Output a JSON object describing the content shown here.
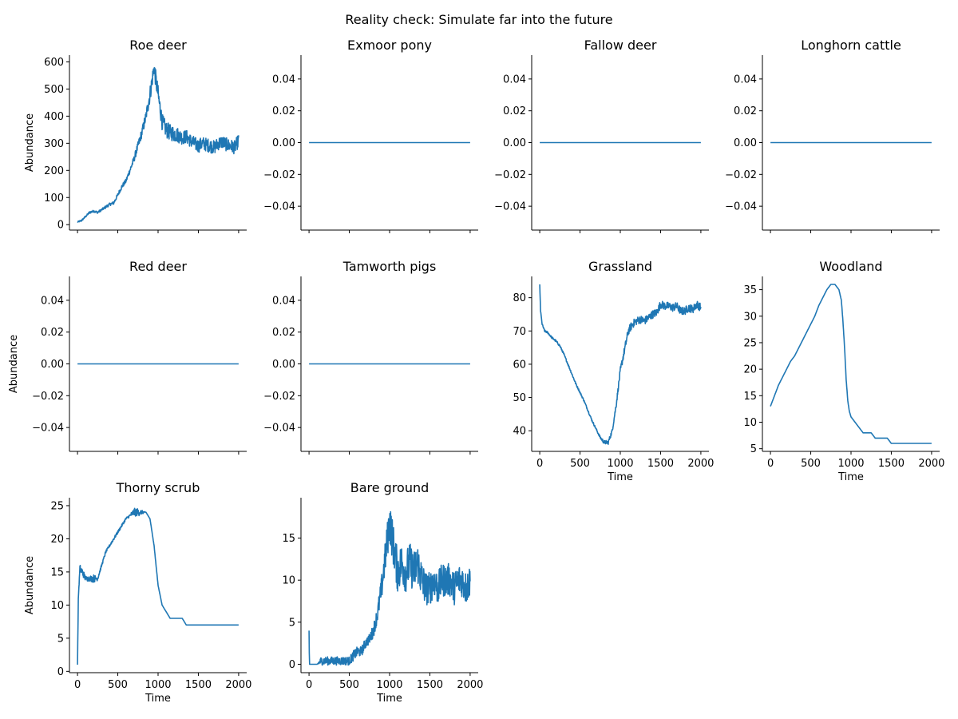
{
  "figure": {
    "suptitle": "Reality check: Simulate far into the future",
    "line_color": "#1f77b4"
  },
  "chart_data": [
    {
      "type": "line",
      "title": "Roe deer",
      "xlabel": "",
      "ylabel": "Abundance",
      "xlim": [
        -100,
        2100
      ],
      "ylim": [
        -20,
        625
      ],
      "x_ticks": [
        "0",
        "500",
        "1000",
        "1500",
        "2000"
      ],
      "show_x_tick_labels": false,
      "y_ticks": [
        0,
        100,
        200,
        300,
        400,
        500,
        600
      ],
      "y_tick_labels": [
        "0",
        "100",
        "200",
        "300",
        "400",
        "500",
        "600"
      ],
      "series": [
        {
          "x": [
            0,
            50,
            100,
            150,
            200,
            250,
            300,
            350,
            400,
            450,
            500,
            550,
            600,
            650,
            700,
            750,
            800,
            850,
            900,
            950,
            1000,
            1050,
            1100,
            1150,
            1200,
            1250,
            1300,
            1350,
            1400,
            1450,
            1500,
            1550,
            1600,
            1650,
            1700,
            1750,
            1800,
            1850,
            1900,
            1950,
            2000
          ],
          "y": [
            10,
            15,
            30,
            45,
            50,
            45,
            55,
            65,
            75,
            80,
            110,
            140,
            160,
            200,
            240,
            290,
            340,
            400,
            480,
            580,
            480,
            380,
            350,
            340,
            335,
            330,
            320,
            325,
            310,
            300,
            290,
            300,
            295,
            290,
            285,
            300,
            305,
            295,
            290,
            285,
            310
          ],
          "noise": [
            2,
            3,
            3,
            4,
            4,
            4,
            4,
            5,
            5,
            6,
            6,
            8,
            8,
            10,
            12,
            15,
            18,
            20,
            30,
            30,
            35,
            30,
            30,
            30,
            30,
            28,
            25,
            25,
            25,
            25,
            25,
            25,
            25,
            25,
            25,
            25,
            25,
            25,
            25,
            25,
            25
          ]
        }
      ]
    },
    {
      "type": "line",
      "title": "Exmoor pony",
      "xlabel": "",
      "ylabel": "",
      "xlim": [
        -100,
        2100
      ],
      "ylim": [
        -0.055,
        0.055
      ],
      "x_ticks": [
        "0",
        "500",
        "1000",
        "1500",
        "2000"
      ],
      "show_x_tick_labels": false,
      "y_ticks": [
        -0.04,
        -0.02,
        0,
        0.02,
        0.04
      ],
      "y_tick_labels": [
        "−0.04",
        "−0.02",
        "0.00",
        "0.02",
        "0.04"
      ],
      "series": [
        {
          "x": [
            0,
            2000
          ],
          "y": [
            0,
            0
          ],
          "noise": [
            0,
            0
          ]
        }
      ]
    },
    {
      "type": "line",
      "title": "Fallow deer",
      "xlabel": "",
      "ylabel": "",
      "xlim": [
        -100,
        2100
      ],
      "ylim": [
        -0.055,
        0.055
      ],
      "x_ticks": [
        "0",
        "500",
        "1000",
        "1500",
        "2000"
      ],
      "show_x_tick_labels": false,
      "y_ticks": [
        -0.04,
        -0.02,
        0,
        0.02,
        0.04
      ],
      "y_tick_labels": [
        "−0.04",
        "−0.02",
        "0.00",
        "0.02",
        "0.04"
      ],
      "series": [
        {
          "x": [
            0,
            2000
          ],
          "y": [
            0,
            0
          ],
          "noise": [
            0,
            0
          ]
        }
      ]
    },
    {
      "type": "line",
      "title": "Longhorn cattle",
      "xlabel": "",
      "ylabel": "",
      "xlim": [
        -100,
        2100
      ],
      "ylim": [
        -0.055,
        0.055
      ],
      "x_ticks": [
        "0",
        "500",
        "1000",
        "1500",
        "2000"
      ],
      "show_x_tick_labels": false,
      "y_ticks": [
        -0.04,
        -0.02,
        0,
        0.02,
        0.04
      ],
      "y_tick_labels": [
        "−0.04",
        "−0.02",
        "0.00",
        "0.02",
        "0.04"
      ],
      "series": [
        {
          "x": [
            0,
            2000
          ],
          "y": [
            0,
            0
          ],
          "noise": [
            0,
            0
          ]
        }
      ]
    },
    {
      "type": "line",
      "title": "Red deer",
      "xlabel": "",
      "ylabel": "Abundance",
      "xlim": [
        -100,
        2100
      ],
      "ylim": [
        -0.055,
        0.055
      ],
      "x_ticks": [
        "0",
        "500",
        "1000",
        "1500",
        "2000"
      ],
      "show_x_tick_labels": false,
      "y_ticks": [
        -0.04,
        -0.02,
        0,
        0.02,
        0.04
      ],
      "y_tick_labels": [
        "−0.04",
        "−0.02",
        "0.00",
        "0.02",
        "0.04"
      ],
      "series": [
        {
          "x": [
            0,
            2000
          ],
          "y": [
            0,
            0
          ],
          "noise": [
            0,
            0
          ]
        }
      ]
    },
    {
      "type": "line",
      "title": "Tamworth pigs",
      "xlabel": "",
      "ylabel": "",
      "xlim": [
        -100,
        2100
      ],
      "ylim": [
        -0.055,
        0.055
      ],
      "x_ticks": [
        "0",
        "500",
        "1000",
        "1500",
        "2000"
      ],
      "show_x_tick_labels": false,
      "y_ticks": [
        -0.04,
        -0.02,
        0,
        0.02,
        0.04
      ],
      "y_tick_labels": [
        "−0.04",
        "−0.02",
        "0.00",
        "0.02",
        "0.04"
      ],
      "series": [
        {
          "x": [
            0,
            2000
          ],
          "y": [
            0,
            0
          ],
          "noise": [
            0,
            0
          ]
        }
      ]
    },
    {
      "type": "line",
      "title": "Grassland",
      "xlabel": "Time",
      "ylabel": "",
      "xlim": [
        -100,
        2100
      ],
      "ylim": [
        33.8,
        86.4
      ],
      "x_ticks": [
        "0",
        "500",
        "1000",
        "1500",
        "2000"
      ],
      "show_x_tick_labels": true,
      "y_ticks": [
        40,
        50,
        60,
        70,
        80
      ],
      "y_tick_labels": [
        "40",
        "50",
        "60",
        "70",
        "80"
      ],
      "series": [
        {
          "x": [
            0,
            10,
            30,
            60,
            100,
            150,
            200,
            250,
            300,
            350,
            400,
            450,
            500,
            550,
            600,
            650,
            700,
            750,
            800,
            850,
            900,
            950,
            1000,
            1050,
            1100,
            1150,
            1200,
            1250,
            1300,
            1350,
            1400,
            1450,
            1500,
            1550,
            1600,
            1650,
            1700,
            1750,
            1800,
            1850,
            1900,
            1950,
            2000
          ],
          "y": [
            84,
            76,
            72,
            70,
            69.5,
            68,
            67,
            65.5,
            63,
            60,
            57,
            54,
            51.5,
            49,
            46,
            43,
            40.5,
            38,
            36.5,
            36.5,
            40,
            48,
            58,
            64,
            70,
            72,
            73,
            73.5,
            73,
            74,
            75,
            75.5,
            78,
            77.5,
            77.5,
            77,
            77.5,
            76,
            76,
            77,
            76.5,
            78,
            77
          ],
          "noise": [
            0,
            0.3,
            0.3,
            0.3,
            0.3,
            0.3,
            0.3,
            0.3,
            0.3,
            0.3,
            0.3,
            0.3,
            0.3,
            0.3,
            0.3,
            0.3,
            0.3,
            0.4,
            0.6,
            0.6,
            0.6,
            0.8,
            1,
            1.2,
            1.2,
            1.2,
            1.2,
            1.2,
            1.2,
            1.2,
            1.2,
            1.2,
            1.2,
            1.2,
            1.2,
            1.2,
            1.2,
            1.2,
            1.2,
            1.2,
            1.2,
            1.2,
            1.2
          ]
        }
      ]
    },
    {
      "type": "line",
      "title": "Woodland",
      "xlabel": "Time",
      "ylabel": "",
      "xlim": [
        -100,
        2100
      ],
      "ylim": [
        4.5,
        37.5
      ],
      "x_ticks": [
        "0",
        "500",
        "1000",
        "1500",
        "2000"
      ],
      "show_x_tick_labels": true,
      "y_ticks": [
        5,
        10,
        15,
        20,
        25,
        30,
        35
      ],
      "y_tick_labels": [
        "5",
        "10",
        "15",
        "20",
        "25",
        "30",
        "35"
      ],
      "series": [
        {
          "x": [
            0,
            50,
            100,
            150,
            200,
            250,
            300,
            350,
            400,
            450,
            500,
            550,
            600,
            650,
            700,
            750,
            800,
            850,
            880,
            900,
            920,
            940,
            960,
            980,
            1000,
            1050,
            1100,
            1150,
            1200,
            1250,
            1300,
            1350,
            1400,
            1450,
            1500,
            1550,
            1600,
            1700,
            1800,
            1900,
            2000
          ],
          "y": [
            13,
            15,
            17,
            18.5,
            20,
            21.5,
            22.5,
            24,
            25.5,
            27,
            28.5,
            30,
            32,
            33.5,
            35,
            36,
            36,
            35,
            33,
            29,
            24,
            18,
            14,
            12,
            11,
            10,
            9,
            8,
            8,
            8,
            7,
            7,
            7,
            7,
            6,
            6,
            6,
            6,
            6,
            6,
            6
          ],
          "noise": [
            0,
            0,
            0,
            0,
            0,
            0,
            0,
            0,
            0,
            0,
            0,
            0,
            0,
            0,
            0,
            0,
            0,
            0,
            0,
            0,
            0,
            0,
            0,
            0,
            0,
            0,
            0,
            0,
            0,
            0,
            0,
            0,
            0,
            0,
            0,
            0,
            0,
            0,
            0,
            0,
            0
          ]
        }
      ]
    },
    {
      "type": "line",
      "title": "Thorny scrub",
      "xlabel": "Time",
      "ylabel": "Abundance",
      "xlim": [
        -100,
        2100
      ],
      "ylim": [
        -0.2,
        26.2
      ],
      "x_ticks": [
        "0",
        "500",
        "1000",
        "1500",
        "2000"
      ],
      "show_x_tick_labels": true,
      "y_ticks": [
        0,
        5,
        10,
        15,
        20,
        25
      ],
      "y_tick_labels": [
        "0",
        "5",
        "10",
        "15",
        "20",
        "25"
      ],
      "series": [
        {
          "x": [
            0,
            10,
            30,
            60,
            100,
            150,
            200,
            250,
            300,
            350,
            400,
            450,
            500,
            550,
            600,
            650,
            700,
            750,
            800,
            850,
            900,
            950,
            1000,
            1050,
            1100,
            1150,
            1200,
            1250,
            1300,
            1350,
            1400,
            1500,
            1600,
            1700,
            1800,
            1900,
            2000
          ],
          "y": [
            1,
            11,
            15.5,
            15,
            14,
            14,
            14,
            14,
            16,
            18,
            19,
            20,
            21,
            22,
            23,
            23.5,
            24,
            24,
            24,
            24,
            23,
            19,
            13,
            10,
            9,
            8,
            8,
            8,
            8,
            7,
            7,
            7,
            7,
            7,
            7,
            7,
            7
          ],
          "noise": [
            0,
            0,
            0.6,
            0.6,
            0.4,
            0.4,
            0.6,
            0.3,
            0.2,
            0.2,
            0.2,
            0.2,
            0.2,
            0.2,
            0.2,
            0.2,
            0.6,
            0.6,
            0.3,
            0,
            0,
            0,
            0,
            0,
            0,
            0,
            0,
            0,
            0,
            0,
            0,
            0,
            0,
            0,
            0,
            0,
            0
          ]
        }
      ]
    },
    {
      "type": "line",
      "title": "Bare ground",
      "xlabel": "Time",
      "ylabel": "",
      "xlim": [
        -100,
        2100
      ],
      "ylim": [
        -1,
        19.8
      ],
      "x_ticks": [
        "0",
        "500",
        "1000",
        "1500",
        "2000"
      ],
      "show_x_tick_labels": true,
      "y_ticks": [
        0,
        5,
        10,
        15
      ],
      "y_tick_labels": [
        "0",
        "5",
        "10",
        "15"
      ],
      "series": [
        {
          "x": [
            0,
            5,
            50,
            100,
            150,
            200,
            250,
            300,
            350,
            400,
            450,
            500,
            550,
            600,
            650,
            700,
            750,
            800,
            850,
            900,
            950,
            1000,
            1050,
            1100,
            1150,
            1200,
            1250,
            1300,
            1350,
            1400,
            1450,
            1500,
            1550,
            1600,
            1650,
            1700,
            1750,
            1800,
            1850,
            1900,
            1950,
            2000
          ],
          "y": [
            4,
            0,
            0,
            0,
            0.4,
            0.4,
            0.4,
            0.4,
            0.4,
            0.4,
            0.4,
            0.4,
            1,
            1.5,
            1.5,
            2.5,
            3,
            4,
            6,
            9,
            13,
            17,
            14,
            11,
            12,
            11,
            12,
            11,
            12,
            10,
            9,
            9,
            10,
            9,
            10,
            10,
            10,
            9,
            10,
            10,
            9,
            10
          ],
          "noise": [
            0,
            0,
            0,
            0,
            0.5,
            0.5,
            0.5,
            0.5,
            0.5,
            0.5,
            0.5,
            0.5,
            0.6,
            0.6,
            0.6,
            0.6,
            0.6,
            0.8,
            1,
            1.5,
            2,
            2.5,
            2.5,
            2.5,
            2.5,
            2.5,
            2.5,
            2.5,
            2.5,
            2.5,
            2,
            2,
            2,
            2,
            2,
            2,
            2,
            2,
            2,
            2,
            2,
            2
          ]
        }
      ]
    }
  ]
}
